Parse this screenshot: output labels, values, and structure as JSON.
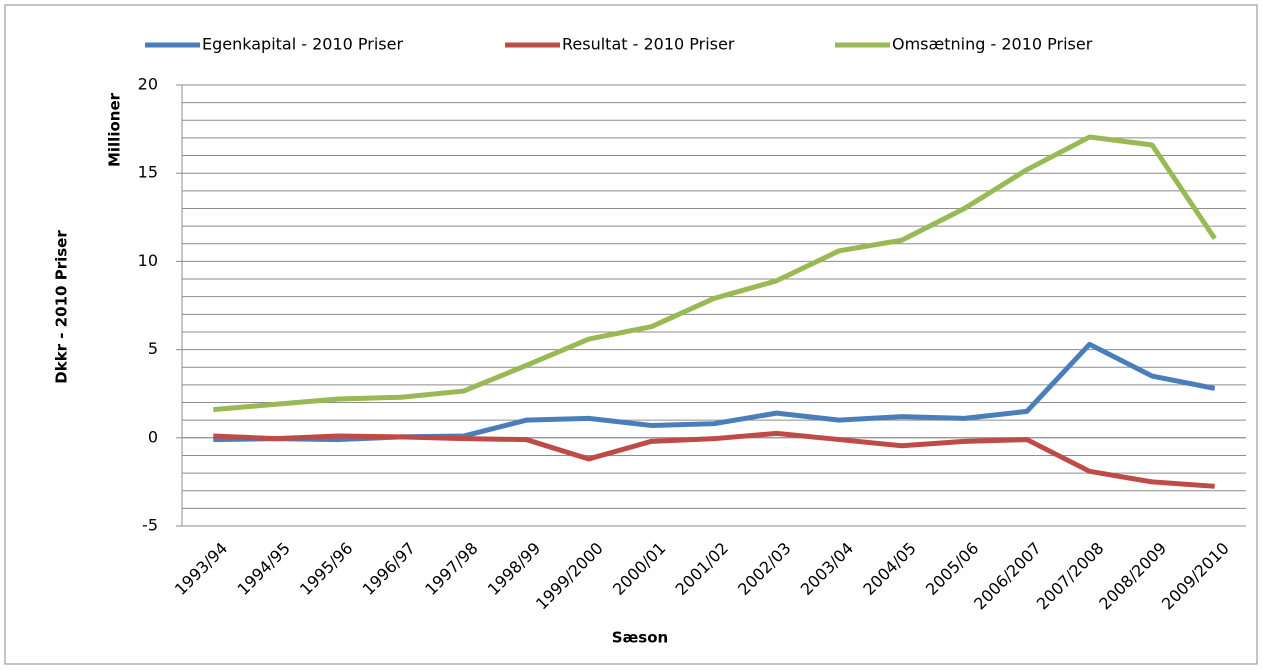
{
  "chart_data": {
    "type": "line",
    "y_label": "Dkkr - 2010 Priser",
    "y_unit_label": "Millioner",
    "x_label": "Sæson",
    "categories": [
      "1993/94",
      "1994/95",
      "1995/96",
      "1996/97",
      "1997/98",
      "1998/99",
      "1999/2000",
      "2000/01",
      "2001/02",
      "2002/03",
      "2003/04",
      "2004/05",
      "2005/06",
      "2006/2007",
      "2007/2008",
      "2008/2009",
      "2009/2010"
    ],
    "series": [
      {
        "name": "Egenkapital - 2010 Priser",
        "color": "#4a7ebb",
        "values": [
          -0.1,
          -0.05,
          -0.1,
          0.05,
          0.1,
          1.0,
          1.1,
          0.7,
          0.8,
          1.4,
          1.0,
          1.2,
          1.1,
          1.5,
          5.3,
          3.5,
          2.8
        ]
      },
      {
        "name": "Resultat - 2010 Priser",
        "color": "#be4b48",
        "values": [
          0.1,
          -0.05,
          0.1,
          0.05,
          -0.05,
          -0.1,
          -1.2,
          -0.2,
          -0.05,
          0.25,
          -0.1,
          -0.45,
          -0.2,
          -0.1,
          -1.9,
          -2.5,
          -2.75
        ]
      },
      {
        "name": "Omsætning - 2010 Priser",
        "color": "#98b954",
        "values": [
          1.6,
          1.9,
          2.2,
          2.3,
          2.65,
          4.1,
          5.6,
          6.3,
          7.9,
          8.9,
          10.6,
          11.2,
          13.0,
          15.2,
          17.05,
          16.6,
          11.3
        ]
      }
    ],
    "ylim": [
      -5,
      20
    ],
    "yticks": [
      -5,
      0,
      5,
      10,
      15,
      20
    ],
    "minor_yticks": [
      -4,
      -3,
      -2,
      -1,
      1,
      2,
      3,
      4,
      6,
      7,
      8,
      9,
      11,
      12,
      13,
      14,
      16,
      17,
      18,
      19
    ],
    "grid": true,
    "legend": "top"
  }
}
